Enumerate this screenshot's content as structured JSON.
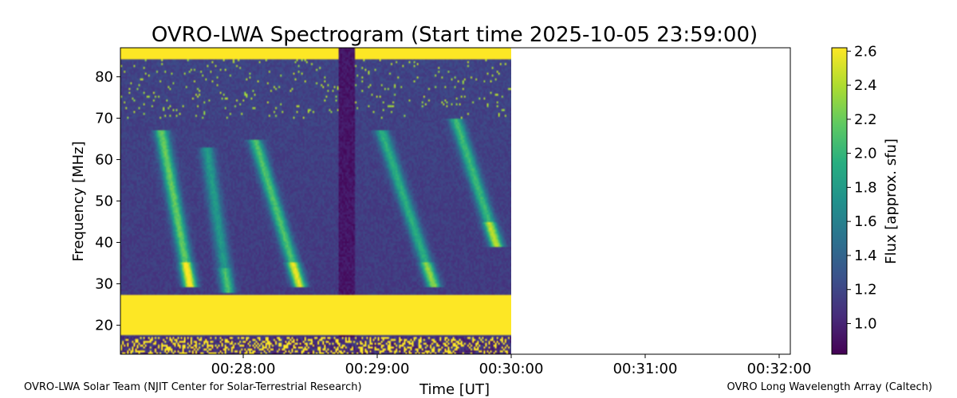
{
  "chart_data": {
    "type": "heatmap",
    "title": "OVRO-LWA Spectrogram (Start time 2025-10-05 23:59:00)",
    "xlabel": "Time [UT]",
    "ylabel": "Frequency [MHz]",
    "colorbar_label": "Flux [approx. sfu]",
    "colormap": "viridis",
    "x_ticks": [
      "00:28:00",
      "00:29:00",
      "00:30:00",
      "00:31:00",
      "00:32:00"
    ],
    "y_ticks": [
      20,
      30,
      40,
      50,
      60,
      70,
      80
    ],
    "ylim": [
      13,
      87
    ],
    "colorbar_ticks": [
      1.0,
      1.2,
      1.4,
      1.6,
      1.8,
      2.0,
      2.2,
      2.4,
      2.6
    ],
    "colorbar_range": [
      0.82,
      2.62
    ],
    "xlim": [
      "00:27:05",
      "00:32:05"
    ],
    "data_extent": [
      "00:27:05",
      "00:30:00"
    ],
    "saturated_band_MHz": [
      17.5,
      27.5
    ],
    "low_flux_gap": [
      "00:28:43",
      "00:28:50"
    ],
    "bursts": [
      {
        "time_start": "00:27:25",
        "time_end": "00:27:36",
        "freq_start": 62,
        "freq_end": 30,
        "peak_flux": 2.4
      },
      {
        "time_start": "00:27:45",
        "time_end": "00:27:53",
        "freq_start": 58,
        "freq_end": 29,
        "peak_flux": 1.9
      },
      {
        "time_start": "00:28:08",
        "time_end": "00:28:25",
        "freq_start": 60,
        "freq_end": 30,
        "peak_flux": 2.3
      },
      {
        "time_start": "00:29:05",
        "time_end": "00:29:25",
        "freq_start": 62,
        "freq_end": 30,
        "peak_flux": 2.1
      },
      {
        "time_start": "00:29:38",
        "time_end": "00:29:53",
        "freq_start": 65,
        "freq_end": 40,
        "peak_flux": 2.2
      }
    ],
    "grid": false
  },
  "footer": {
    "left": "OVRO-LWA Solar Team (NJIT Center for Solar-Terrestrial Research)",
    "right": "OVRO Long Wavelength Array (Caltech)"
  }
}
